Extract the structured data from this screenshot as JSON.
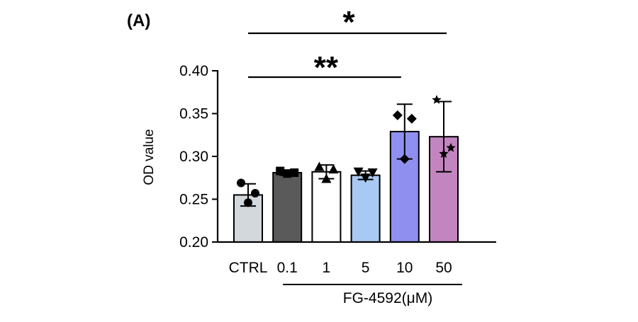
{
  "panel_label": "(A)",
  "chart_data": {
    "type": "bar",
    "ylabel": "OD value",
    "ylim": [
      0.2,
      0.4
    ],
    "yticks": [
      0.2,
      0.25,
      0.3,
      0.35,
      0.4
    ],
    "ytick_labels": [
      "0.20",
      "0.25",
      "0.30",
      "0.35",
      "0.40"
    ],
    "categories": [
      "CTRL",
      "0.1",
      "1",
      "5",
      "10",
      "50"
    ],
    "group_label": "FG-4592(μM)",
    "bars": [
      {
        "category": "CTRL",
        "mean": 0.255,
        "sd": 0.013,
        "color": "#d3d8dd",
        "marker": "circle",
        "points": [
          0.269,
          0.257,
          0.246
        ]
      },
      {
        "category": "0.1",
        "mean": 0.281,
        "sd": 0.003,
        "color": "#5a5a5a",
        "marker": "square",
        "points": [
          0.283,
          0.281,
          0.28
        ]
      },
      {
        "category": "1",
        "mean": 0.282,
        "sd": 0.008,
        "color": "#ffffff",
        "marker": "triangle-up",
        "points": [
          0.288,
          0.285,
          0.274
        ]
      },
      {
        "category": "5",
        "mean": 0.278,
        "sd": 0.005,
        "color": "#a9c8f2",
        "marker": "triangle-down",
        "points": [
          0.282,
          0.281,
          0.275
        ]
      },
      {
        "category": "10",
        "mean": 0.329,
        "sd": 0.032,
        "color": "#8f8ff0",
        "marker": "diamond",
        "points": [
          0.348,
          0.344,
          0.297
        ]
      },
      {
        "category": "50",
        "mean": 0.323,
        "sd": 0.041,
        "color": "#c385c0",
        "marker": "star",
        "points": [
          0.366,
          0.31,
          0.303
        ]
      }
    ],
    "significance": [
      {
        "from": "CTRL",
        "to": "10",
        "label": "**"
      },
      {
        "from": "CTRL",
        "to": "50",
        "label": "*"
      }
    ]
  }
}
